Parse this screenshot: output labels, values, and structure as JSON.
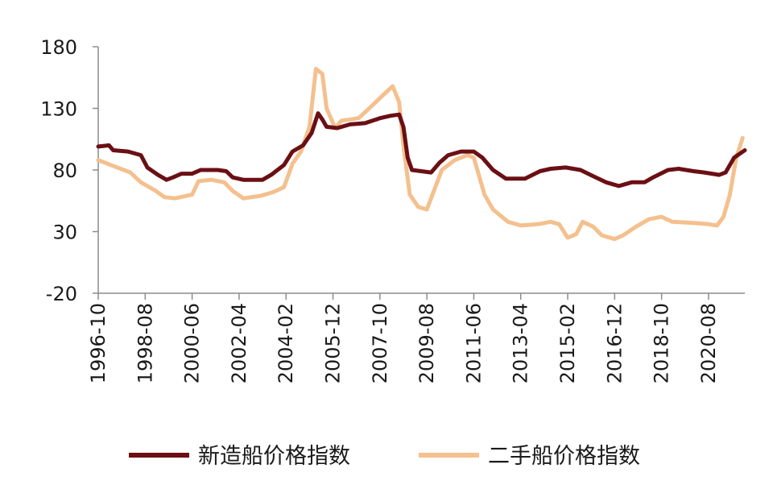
{
  "chart_data": {
    "type": "line",
    "title": "",
    "xlabel": "",
    "ylabel": "",
    "ylim": [
      -20,
      180
    ],
    "yticks": [
      180,
      130,
      80,
      30,
      -20
    ],
    "categories": [
      "1996-10",
      "1998-08",
      "2000-06",
      "2002-04",
      "2004-02",
      "2005-12",
      "2007-10",
      "2009-08",
      "2011-06",
      "2013-04",
      "2015-02",
      "2016-12",
      "2018-10",
      "2020-08"
    ],
    "legend_position": "bottom",
    "series": [
      {
        "name": "新造船价格指数",
        "color": "#6b0f14",
        "points": [
          [
            "1996-10",
            99
          ],
          [
            "1997-03",
            100
          ],
          [
            "1997-05",
            96
          ],
          [
            "1997-12",
            95
          ],
          [
            "1998-06",
            92
          ],
          [
            "1998-09",
            82
          ],
          [
            "1999-02",
            76
          ],
          [
            "1999-06",
            72
          ],
          [
            "1999-09",
            74
          ],
          [
            "2000-01",
            77
          ],
          [
            "2000-06",
            77
          ],
          [
            "2000-10",
            80
          ],
          [
            "2001-06",
            80
          ],
          [
            "2001-10",
            79
          ],
          [
            "2002-01",
            74
          ],
          [
            "2002-06",
            72
          ],
          [
            "2003-03",
            72
          ],
          [
            "2003-07",
            76
          ],
          [
            "2004-01",
            84
          ],
          [
            "2004-05",
            95
          ],
          [
            "2004-10",
            100
          ],
          [
            "2005-02",
            110
          ],
          [
            "2005-05",
            126
          ],
          [
            "2005-07",
            121
          ],
          [
            "2005-09",
            115
          ],
          [
            "2006-02",
            114
          ],
          [
            "2006-08",
            117
          ],
          [
            "2007-03",
            118
          ],
          [
            "2007-10",
            122
          ],
          [
            "2008-03",
            124
          ],
          [
            "2008-07",
            125
          ],
          [
            "2008-09",
            115
          ],
          [
            "2008-11",
            90
          ],
          [
            "2009-01",
            80
          ],
          [
            "2009-10",
            78
          ],
          [
            "2010-02",
            86
          ],
          [
            "2010-06",
            92
          ],
          [
            "2010-12",
            95
          ],
          [
            "2011-06",
            95
          ],
          [
            "2011-10",
            90
          ],
          [
            "2012-03",
            80
          ],
          [
            "2012-09",
            73
          ],
          [
            "2013-06",
            73
          ],
          [
            "2014-01",
            79
          ],
          [
            "2014-06",
            81
          ],
          [
            "2015-01",
            82
          ],
          [
            "2015-08",
            80
          ],
          [
            "2016-02",
            75
          ],
          [
            "2016-08",
            70
          ],
          [
            "2017-02",
            67
          ],
          [
            "2017-08",
            70
          ],
          [
            "2018-02",
            70
          ],
          [
            "2018-06",
            74
          ],
          [
            "2019-01",
            80
          ],
          [
            "2019-06",
            81
          ],
          [
            "2020-01",
            79
          ],
          [
            "2020-06",
            78
          ],
          [
            "2021-01",
            76
          ],
          [
            "2021-04",
            78
          ],
          [
            "2021-08",
            90
          ],
          [
            "2022-01",
            96
          ]
        ]
      },
      {
        "name": "二手船价格指数",
        "color": "#f4c08e",
        "points": [
          [
            "1996-10",
            88
          ],
          [
            "1997-04",
            84
          ],
          [
            "1998-01",
            78
          ],
          [
            "1998-06",
            70
          ],
          [
            "1999-01",
            63
          ],
          [
            "1999-05",
            58
          ],
          [
            "1999-10",
            57
          ],
          [
            "2000-06",
            60
          ],
          [
            "2000-09",
            71
          ],
          [
            "2001-03",
            72
          ],
          [
            "2001-09",
            70
          ],
          [
            "2002-01",
            63
          ],
          [
            "2002-06",
            57
          ],
          [
            "2003-02",
            59
          ],
          [
            "2003-08",
            62
          ],
          [
            "2004-01",
            66
          ],
          [
            "2004-05",
            85
          ],
          [
            "2004-09",
            95
          ],
          [
            "2005-01",
            115
          ],
          [
            "2005-04",
            162
          ],
          [
            "2005-07",
            158
          ],
          [
            "2005-09",
            130
          ],
          [
            "2006-01",
            114
          ],
          [
            "2006-04",
            120
          ],
          [
            "2006-12",
            122
          ],
          [
            "2007-05",
            130
          ],
          [
            "2007-11",
            140
          ],
          [
            "2008-04",
            148
          ],
          [
            "2008-07",
            135
          ],
          [
            "2008-09",
            100
          ],
          [
            "2008-12",
            60
          ],
          [
            "2009-04",
            50
          ],
          [
            "2009-08",
            48
          ],
          [
            "2010-03",
            80
          ],
          [
            "2010-09",
            88
          ],
          [
            "2011-03",
            92
          ],
          [
            "2011-06",
            90
          ],
          [
            "2011-11",
            60
          ],
          [
            "2012-03",
            48
          ],
          [
            "2012-10",
            38
          ],
          [
            "2013-04",
            35
          ],
          [
            "2013-12",
            36
          ],
          [
            "2014-06",
            38
          ],
          [
            "2014-10",
            36
          ],
          [
            "2015-02",
            25
          ],
          [
            "2015-06",
            28
          ],
          [
            "2015-09",
            38
          ],
          [
            "2016-02",
            34
          ],
          [
            "2016-06",
            27
          ],
          [
            "2016-12",
            24
          ],
          [
            "2017-04",
            27
          ],
          [
            "2017-10",
            34
          ],
          [
            "2018-04",
            40
          ],
          [
            "2018-10",
            42
          ],
          [
            "2019-03",
            38
          ],
          [
            "2020-01",
            37
          ],
          [
            "2020-08",
            36
          ],
          [
            "2020-12",
            35
          ],
          [
            "2021-03",
            42
          ],
          [
            "2021-06",
            60
          ],
          [
            "2021-09",
            90
          ],
          [
            "2021-12",
            106
          ]
        ]
      }
    ]
  }
}
